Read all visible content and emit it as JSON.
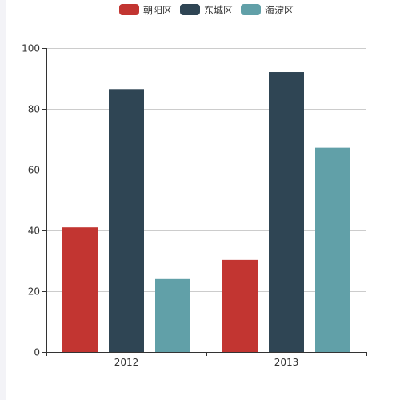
{
  "chart_data": {
    "type": "bar",
    "categories": [
      "2012",
      "2013"
    ],
    "series": [
      {
        "name": "朝阳区",
        "color": "#c23531",
        "values": [
          41,
          30.3
        ]
      },
      {
        "name": "东城区",
        "color": "#2f4554",
        "values": [
          86.5,
          92.1
        ]
      },
      {
        "name": "海淀区",
        "color": "#61a0a8",
        "values": [
          24,
          67.2
        ]
      }
    ],
    "ylim": [
      0,
      100
    ],
    "yticks": [
      "0",
      "20",
      "40",
      "60",
      "80",
      "100"
    ],
    "grid": true,
    "legend_position": "top-center"
  }
}
